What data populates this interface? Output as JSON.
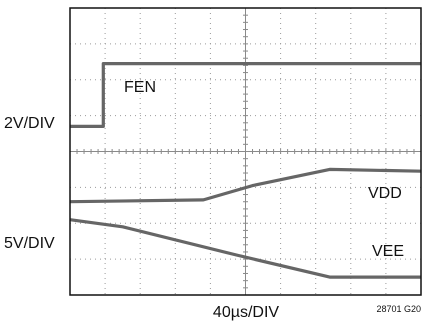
{
  "chart_data": {
    "type": "line",
    "title": "",
    "xlabel": "40µs/DIV",
    "figure_id": "28701 G20",
    "grid": true,
    "x_divisions": 10,
    "y_divisions": 8,
    "x_range_div": [
      0,
      10
    ],
    "y_range_div": [
      0,
      8
    ],
    "trace_color": "#666666",
    "channels": [
      {
        "name": "FEN",
        "scale_label": "2V/DIV"
      },
      {
        "name": "VDD/VEE",
        "scale_label": "5V/DIV"
      }
    ],
    "series": [
      {
        "name": "FEN",
        "x": [
          0,
          0.95,
          0.95,
          10
        ],
        "y": [
          4.7,
          4.7,
          6.45,
          6.45
        ]
      },
      {
        "name": "VDD",
        "x": [
          0,
          3.8,
          5.2,
          7.4,
          10
        ],
        "y": [
          2.6,
          2.65,
          3.05,
          3.5,
          3.45
        ]
      },
      {
        "name": "VEE",
        "x": [
          0,
          1.5,
          4.8,
          7.4,
          10
        ],
        "y": [
          2.1,
          1.9,
          1.1,
          0.5,
          0.5
        ]
      }
    ],
    "annotations": [
      {
        "text": "FEN",
        "near_series": "FEN"
      },
      {
        "text": "VDD",
        "near_series": "VDD"
      },
      {
        "text": "VEE",
        "near_series": "VEE"
      }
    ]
  }
}
